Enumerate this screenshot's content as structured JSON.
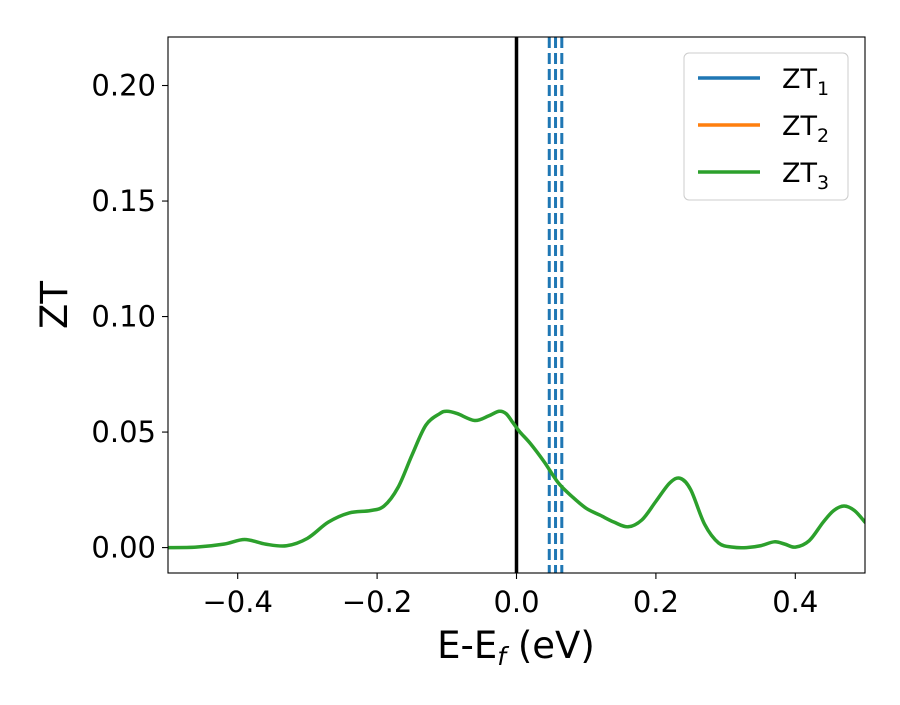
{
  "chart_data": {
    "type": "line",
    "title": "",
    "xlabel": {
      "text": "E-E",
      "subscript": "f",
      "suffix": " (eV)"
    },
    "ylabel": "ZT",
    "xlim": [
      -0.5,
      0.5
    ],
    "ylim": [
      -0.011,
      0.221
    ],
    "x_ticks": [
      -0.4,
      -0.2,
      0.0,
      0.2,
      0.4
    ],
    "x_tick_labels": [
      "−0.4",
      "−0.2",
      "0.0",
      "0.2",
      "0.4"
    ],
    "y_ticks": [
      0.0,
      0.05,
      0.1,
      0.15,
      0.2
    ],
    "y_tick_labels": [
      "0.00",
      "0.05",
      "0.10",
      "0.15",
      "0.20"
    ],
    "grid": false,
    "legend_position": "top-right",
    "series": [
      {
        "name": "ZT",
        "subscript": "1",
        "color": "#1f77b4"
      },
      {
        "name": "ZT",
        "subscript": "2",
        "color": "#ff7f0e"
      },
      {
        "name": "ZT",
        "subscript": "3",
        "color": "#2ca02c"
      }
    ],
    "curve": {
      "color": "#2ca02c",
      "x": [
        -0.5,
        -0.46,
        -0.42,
        -0.39,
        -0.36,
        -0.33,
        -0.3,
        -0.27,
        -0.24,
        -0.21,
        -0.19,
        -0.17,
        -0.15,
        -0.13,
        -0.11,
        -0.1,
        -0.085,
        -0.06,
        -0.04,
        -0.025,
        -0.015,
        -0.005,
        0.005,
        0.02,
        0.04,
        0.06,
        0.08,
        0.1,
        0.12,
        0.14,
        0.16,
        0.18,
        0.2,
        0.22,
        0.235,
        0.25,
        0.27,
        0.29,
        0.31,
        0.33,
        0.35,
        0.37,
        0.385,
        0.4,
        0.42,
        0.44,
        0.455,
        0.47,
        0.485,
        0.5
      ],
      "y": [
        0.0,
        0.0002,
        0.0015,
        0.0035,
        0.0015,
        0.0008,
        0.004,
        0.011,
        0.015,
        0.016,
        0.018,
        0.026,
        0.04,
        0.053,
        0.058,
        0.059,
        0.058,
        0.055,
        0.057,
        0.059,
        0.058,
        0.054,
        0.05,
        0.045,
        0.037,
        0.028,
        0.022,
        0.017,
        0.014,
        0.011,
        0.009,
        0.012,
        0.02,
        0.028,
        0.03,
        0.025,
        0.01,
        0.002,
        0.0002,
        0.0,
        0.0008,
        0.0025,
        0.0015,
        0.0002,
        0.003,
        0.011,
        0.016,
        0.018,
        0.016,
        0.011
      ]
    },
    "vertical_lines": [
      {
        "x": 0.0,
        "color": "#000000",
        "style": "solid"
      },
      {
        "x": 0.047,
        "color": "#1f77b4",
        "style": "dashed"
      },
      {
        "x": 0.056,
        "color": "#1f77b4",
        "style": "dashed"
      },
      {
        "x": 0.065,
        "color": "#1f77b4",
        "style": "dashed"
      }
    ]
  }
}
